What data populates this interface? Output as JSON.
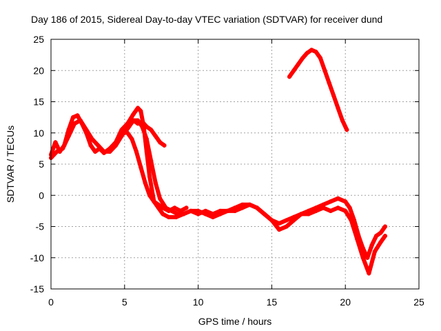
{
  "chart_data": {
    "type": "scatter",
    "title": "Day 186 of 2015, Sidereal Day-to-day VTEC variation (SDTVAR) for receiver dund",
    "xlabel": "GPS time / hours",
    "ylabel": "SDTVAR / TECUs",
    "xlim": [
      0,
      25
    ],
    "ylim": [
      -15,
      25
    ],
    "xticks": [
      0,
      5,
      10,
      15,
      20,
      25
    ],
    "yticks": [
      -15,
      -10,
      -5,
      0,
      5,
      10,
      15,
      20,
      25
    ],
    "xtick_labels": [
      "0",
      "5",
      "10",
      "15",
      "20",
      "25"
    ],
    "ytick_labels": [
      "-15",
      "-10",
      "-5",
      "0",
      "5",
      "10",
      "15",
      "20",
      "25"
    ],
    "grid": true,
    "legend": "none",
    "marker_color": "#ff0000",
    "series": [
      {
        "x": [
          0.0,
          0.3,
          0.6,
          0.9,
          1.2,
          1.5,
          1.8,
          2.1,
          2.4,
          2.7,
          3.0,
          3.3,
          3.6,
          4.0,
          4.4,
          4.8,
          5.2,
          5.6,
          5.9,
          6.1,
          6.3,
          6.5,
          6.7,
          7.0,
          7.3,
          7.6,
          8.0,
          8.5,
          9.0,
          9.5,
          10.0,
          10.5,
          11.0,
          11.5,
          12.0,
          12.5,
          13.0,
          13.5,
          14.0,
          14.5,
          15.0,
          15.5,
          16.0,
          16.5,
          17.0,
          17.5,
          18.0,
          18.5,
          19.0,
          19.5,
          20.0,
          20.3,
          20.6,
          20.9,
          21.2,
          21.5,
          21.8,
          22.1,
          22.4,
          22.7
        ],
        "y": [
          6.5,
          8.5,
          7.0,
          8.0,
          10.5,
          12.5,
          12.8,
          11.5,
          10.0,
          8.0,
          7.0,
          7.5,
          6.8,
          7.5,
          8.5,
          10.5,
          11.5,
          13.0,
          14.0,
          13.5,
          11.0,
          7.0,
          3.0,
          -1.0,
          -2.0,
          -3.0,
          -3.5,
          -3.5,
          -3.0,
          -2.5,
          -3.0,
          -2.5,
          -3.0,
          -2.5,
          -2.5,
          -2.0,
          -1.5,
          -1.5,
          -2.0,
          -3.0,
          -4.0,
          -4.5,
          -4.0,
          -3.5,
          -3.0,
          -2.5,
          -2.0,
          -1.5,
          -1.0,
          -0.5,
          -1.0,
          -2.0,
          -4.0,
          -6.5,
          -8.5,
          -10.0,
          -8.0,
          -6.5,
          -6.0,
          -5.0
        ]
      },
      {
        "x": [
          0.0,
          0.4,
          0.8,
          1.2,
          1.6,
          2.0,
          2.4,
          2.8,
          3.2,
          3.6,
          4.0,
          4.4,
          4.8,
          5.2,
          5.6,
          5.9,
          6.2,
          6.5,
          6.8,
          7.1,
          7.4,
          7.8,
          8.2,
          8.6,
          9.0,
          9.5,
          10.0,
          10.5,
          11.0,
          11.5,
          12.0,
          12.5,
          13.0,
          13.5,
          14.0,
          14.5,
          15.0,
          15.5,
          16.0,
          16.5,
          17.0,
          17.5,
          18.0,
          18.5,
          19.0,
          19.5,
          20.0,
          20.4,
          20.8,
          21.2,
          21.6,
          22.0,
          22.4,
          22.7
        ],
        "y": [
          6.0,
          7.0,
          7.5,
          9.5,
          11.5,
          12.0,
          10.5,
          9.0,
          8.0,
          7.0,
          7.0,
          8.0,
          9.5,
          11.0,
          12.0,
          12.0,
          11.0,
          9.0,
          5.5,
          2.0,
          -0.5,
          -2.0,
          -2.5,
          -3.0,
          -3.0,
          -2.5,
          -2.5,
          -3.0,
          -3.5,
          -3.0,
          -2.5,
          -2.5,
          -2.0,
          -1.5,
          -2.0,
          -3.0,
          -4.0,
          -5.5,
          -5.0,
          -4.0,
          -3.0,
          -3.0,
          -2.5,
          -2.0,
          -2.5,
          -2.0,
          -2.5,
          -4.0,
          -7.0,
          -10.0,
          -12.5,
          -9.0,
          -7.5,
          -6.5
        ]
      },
      {
        "x": [
          5.0,
          5.3,
          5.6,
          5.9,
          6.2,
          6.5,
          6.8,
          7.1,
          7.4,
          7.7
        ],
        "y": [
          10.0,
          11.0,
          12.0,
          11.5,
          11.8,
          11.0,
          10.5,
          9.5,
          8.5,
          8.0
        ]
      },
      {
        "x": [
          5.2,
          5.5,
          5.8,
          6.1,
          6.4,
          6.7,
          7.0,
          7.3,
          7.6,
          8.0,
          8.4,
          8.8,
          9.2
        ],
        "y": [
          10.0,
          9.0,
          7.0,
          4.5,
          2.0,
          0.0,
          -1.0,
          -1.5,
          -2.0,
          -2.5,
          -2.0,
          -2.5,
          -2.0
        ]
      },
      {
        "x": [
          16.2,
          16.5,
          16.8,
          17.1,
          17.4,
          17.7,
          18.0,
          18.3,
          18.6,
          18.9,
          19.2,
          19.5,
          19.8,
          20.1
        ],
        "y": [
          19.0,
          20.0,
          21.0,
          22.0,
          22.8,
          23.3,
          23.0,
          22.0,
          20.0,
          18.0,
          16.0,
          14.0,
          12.0,
          10.5
        ]
      }
    ]
  }
}
